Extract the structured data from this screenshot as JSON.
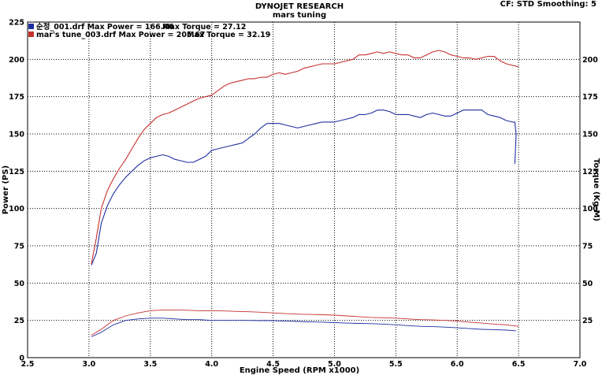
{
  "chart_data": {
    "type": "line",
    "title": "DYNOJET RESEARCH",
    "subtitle": "mars tuning",
    "info": "CF: STD  Smoothing: 5",
    "xlabel": "Engine Speed (RPM x1000)",
    "ylabel_left": "Power (PS)",
    "ylabel_right": "Torque (Kg-M)",
    "xlim": [
      2.5,
      7.0
    ],
    "ylim": [
      0,
      225
    ],
    "xticks": [
      "2.5",
      "3.0",
      "3.5",
      "4.0",
      "4.5",
      "5.0",
      "5.5",
      "6.0",
      "6.5",
      "7.0"
    ],
    "yticks_left": [
      "0",
      "25",
      "50",
      "75",
      "100",
      "125",
      "150",
      "175",
      "200",
      "225"
    ],
    "yticks_right": [
      "25",
      "50",
      "75",
      "100",
      "125",
      "150",
      "175",
      "200"
    ],
    "grid": true,
    "colors": {
      "run1": "#1f2fa0",
      "run2": "#c83030",
      "grid": "#000000"
    },
    "legend": [
      {
        "label": "순정_001.drf Max Power = 166.46",
        "torque": "Max Torque = 27.12",
        "color": "#1f2fa0"
      },
      {
        "label": "mar's tune_003.drf Max Power = 205.67",
        "torque": "Max Torque = 32.19",
        "color": "#c83030"
      }
    ],
    "series": [
      {
        "name": "순정_001.drf",
        "metric": "power",
        "color": "#1f2fa0",
        "x": [
          3.02,
          3.06,
          3.1,
          3.15,
          3.2,
          3.25,
          3.3,
          3.35,
          3.4,
          3.45,
          3.5,
          3.55,
          3.6,
          3.65,
          3.7,
          3.75,
          3.8,
          3.85,
          3.9,
          3.95,
          4.0,
          4.05,
          4.1,
          4.15,
          4.2,
          4.25,
          4.3,
          4.35,
          4.4,
          4.45,
          4.5,
          4.55,
          4.6,
          4.65,
          4.7,
          4.75,
          4.8,
          4.85,
          4.9,
          4.95,
          5.0,
          5.05,
          5.1,
          5.15,
          5.2,
          5.25,
          5.3,
          5.35,
          5.4,
          5.45,
          5.5,
          5.55,
          5.6,
          5.65,
          5.7,
          5.75,
          5.8,
          5.85,
          5.9,
          5.95,
          6.0,
          6.05,
          6.1,
          6.15,
          6.2,
          6.25,
          6.3,
          6.35,
          6.4,
          6.45,
          6.47,
          6.48,
          6.47
        ],
        "y": [
          62,
          70,
          90,
          102,
          110,
          116,
          121,
          125,
          129,
          132,
          134,
          135,
          136,
          135,
          133,
          132,
          131,
          131,
          133,
          135,
          139,
          140,
          141,
          142,
          143,
          144,
          147,
          150,
          154,
          157,
          157,
          157,
          156,
          155,
          154,
          155,
          156,
          157,
          158,
          158,
          158,
          159,
          160,
          161,
          163,
          163,
          164,
          166,
          166,
          165,
          163,
          163,
          163,
          162,
          161,
          163,
          164,
          163,
          162,
          162,
          164,
          166,
          166,
          166,
          166,
          163,
          162,
          161,
          159,
          158,
          158,
          150,
          130
        ]
      },
      {
        "name": "mar's tune_003.drf",
        "metric": "power",
        "color": "#c83030",
        "x": [
          3.02,
          3.06,
          3.1,
          3.15,
          3.2,
          3.25,
          3.3,
          3.35,
          3.4,
          3.45,
          3.5,
          3.55,
          3.6,
          3.65,
          3.7,
          3.75,
          3.8,
          3.85,
          3.9,
          3.95,
          4.0,
          4.05,
          4.1,
          4.15,
          4.2,
          4.25,
          4.3,
          4.35,
          4.4,
          4.45,
          4.5,
          4.55,
          4.6,
          4.65,
          4.7,
          4.75,
          4.8,
          4.85,
          4.9,
          4.95,
          5.0,
          5.05,
          5.1,
          5.15,
          5.2,
          5.25,
          5.3,
          5.35,
          5.4,
          5.45,
          5.5,
          5.55,
          5.6,
          5.65,
          5.7,
          5.75,
          5.8,
          5.85,
          5.9,
          5.95,
          6.0,
          6.05,
          6.1,
          6.15,
          6.2,
          6.25,
          6.3,
          6.35,
          6.4,
          6.45,
          6.5
        ],
        "y": [
          63,
          80,
          100,
          112,
          120,
          127,
          133,
          140,
          147,
          153,
          157,
          161,
          163,
          164,
          166,
          168,
          170,
          172,
          174,
          175,
          176,
          179,
          182,
          184,
          185,
          186,
          187,
          187,
          188,
          188,
          190,
          191,
          190,
          191,
          192,
          194,
          195,
          196,
          197,
          197,
          197,
          198,
          199,
          200,
          203,
          203,
          204,
          205,
          204,
          205,
          204,
          203,
          203,
          201,
          201,
          203,
          205,
          206,
          205,
          203,
          202,
          201,
          201,
          200,
          201,
          202,
          202,
          199,
          197,
          196,
          195
        ]
      },
      {
        "name": "순정_001.drf",
        "metric": "torque",
        "color": "#1f2fa0",
        "x": [
          3.02,
          3.1,
          3.2,
          3.3,
          3.4,
          3.5,
          3.6,
          3.7,
          3.8,
          3.9,
          4.0,
          4.1,
          4.2,
          4.3,
          4.4,
          4.5,
          4.6,
          4.7,
          4.8,
          4.9,
          5.0,
          5.1,
          5.2,
          5.3,
          5.4,
          5.5,
          5.6,
          5.7,
          5.8,
          5.9,
          6.0,
          6.1,
          6.2,
          6.3,
          6.4,
          6.48
        ],
        "y": [
          14,
          17,
          22,
          25,
          26,
          26.5,
          26.5,
          26,
          25.5,
          25.5,
          25,
          25,
          25,
          25,
          24.8,
          24.8,
          24.5,
          24.3,
          24,
          23.8,
          23.5,
          23.2,
          23,
          22.8,
          22.5,
          22,
          21.5,
          21,
          20.8,
          20.5,
          20,
          19.5,
          19,
          18.8,
          18.5,
          18
        ]
      },
      {
        "name": "mar's tune_003.drf",
        "metric": "torque",
        "color": "#c83030",
        "x": [
          3.02,
          3.1,
          3.2,
          3.3,
          3.4,
          3.5,
          3.6,
          3.7,
          3.8,
          3.9,
          4.0,
          4.1,
          4.2,
          4.3,
          4.4,
          4.5,
          4.6,
          4.7,
          4.8,
          4.9,
          5.0,
          5.1,
          5.2,
          5.3,
          5.4,
          5.5,
          5.6,
          5.7,
          5.8,
          5.9,
          6.0,
          6.1,
          6.2,
          6.3,
          6.4,
          6.5
        ],
        "y": [
          15,
          19,
          25,
          28,
          30,
          31.5,
          32,
          32,
          31.8,
          31.5,
          31.5,
          31.3,
          31,
          30.8,
          30.5,
          30,
          29.5,
          29.2,
          29,
          28.8,
          28.5,
          28,
          27.5,
          27,
          26.8,
          26.5,
          26,
          25.5,
          25.3,
          25,
          24.5,
          23.8,
          23.2,
          22.5,
          22,
          21
        ]
      }
    ]
  }
}
